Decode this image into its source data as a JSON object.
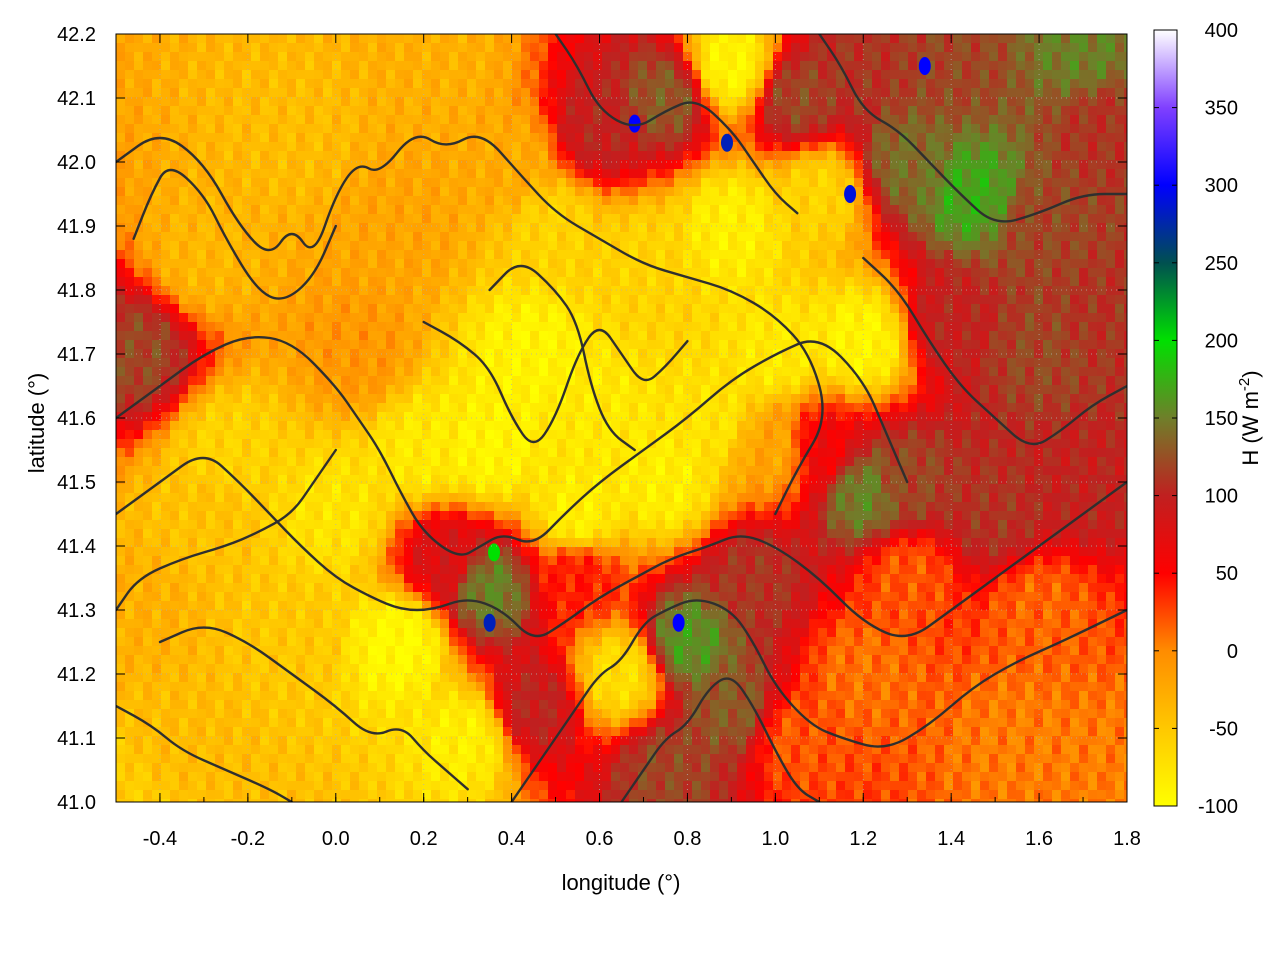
{
  "chart_data": {
    "type": "heatmap",
    "title": "",
    "xlabel": "longitude (°)",
    "ylabel": "latitude (°)",
    "xlim": [
      -0.5,
      1.8
    ],
    "ylim": [
      41.0,
      42.2
    ],
    "x_ticks": [
      -0.4,
      -0.2,
      0.0,
      0.2,
      0.4,
      0.6,
      0.8,
      1.0,
      1.2,
      1.4,
      1.6,
      1.8
    ],
    "x_tick_labels": [
      "-0.4",
      "-0.2",
      "0.0",
      "0.2",
      "0.4",
      "0.6",
      "0.8",
      "1.0",
      "1.2",
      "1.4",
      "1.6",
      "1.8"
    ],
    "y_ticks": [
      41.0,
      41.1,
      41.2,
      41.3,
      41.4,
      41.5,
      41.6,
      41.7,
      41.8,
      41.9,
      42.0,
      42.1,
      42.2
    ],
    "y_tick_labels": [
      "41.0",
      "41.1",
      "41.2",
      "41.3",
      "41.4",
      "41.5",
      "41.6",
      "41.7",
      "41.8",
      "41.9",
      "42.0",
      "42.1",
      "42.2"
    ],
    "grid": true,
    "colorbar": {
      "label": "H (W m",
      "label_superscript": "-2",
      "label_close": ")",
      "range": [
        -100,
        400
      ],
      "ticks": [
        -100,
        -50,
        0,
        50,
        100,
        150,
        200,
        250,
        300,
        350,
        400
      ],
      "tick_labels": [
        "-100",
        "-50",
        "0",
        "50",
        "100",
        "150",
        "200",
        "250",
        "300",
        "350",
        "400"
      ],
      "stops": [
        {
          "value": -100,
          "color": "#ffff00"
        },
        {
          "value": -50,
          "color": "#ffc800"
        },
        {
          "value": 0,
          "color": "#ff8c00"
        },
        {
          "value": 50,
          "color": "#ff0000"
        },
        {
          "value": 100,
          "color": "#c02020"
        },
        {
          "value": 150,
          "color": "#6f7f2a"
        },
        {
          "value": 200,
          "color": "#00e000"
        },
        {
          "value": 250,
          "color": "#005050"
        },
        {
          "value": 300,
          "color": "#0000ff"
        },
        {
          "value": 350,
          "color": "#8040ff"
        },
        {
          "value": 400,
          "color": "#ffffff"
        }
      ]
    },
    "field_regions": [
      {
        "lon": -0.5,
        "lat": 41.0,
        "value": -55
      },
      {
        "lon": -0.35,
        "lat": 41.1,
        "value": -40
      },
      {
        "lon": -0.45,
        "lat": 41.3,
        "value": -30
      },
      {
        "lon": -0.3,
        "lat": 41.45,
        "value": -45
      },
      {
        "lon": -0.45,
        "lat": 41.7,
        "value": 120
      },
      {
        "lon": -0.3,
        "lat": 41.85,
        "value": -35
      },
      {
        "lon": -0.1,
        "lat": 42.05,
        "value": -40
      },
      {
        "lon": 0.05,
        "lat": 41.7,
        "value": -10
      },
      {
        "lon": 0.15,
        "lat": 41.9,
        "value": -20
      },
      {
        "lon": 0.25,
        "lat": 42.15,
        "value": -30
      },
      {
        "lon": 0.4,
        "lat": 42.0,
        "value": -25
      },
      {
        "lon": 0.0,
        "lat": 41.45,
        "value": -75
      },
      {
        "lon": 0.2,
        "lat": 41.55,
        "value": -80
      },
      {
        "lon": 0.15,
        "lat": 41.25,
        "value": -95
      },
      {
        "lon": 0.3,
        "lat": 41.1,
        "value": -85
      },
      {
        "lon": 0.45,
        "lat": 41.7,
        "value": -90
      },
      {
        "lon": 0.6,
        "lat": 41.6,
        "value": -80
      },
      {
        "lon": 0.7,
        "lat": 41.85,
        "value": -60
      },
      {
        "lon": 0.55,
        "lat": 41.45,
        "value": -85
      },
      {
        "lon": 0.25,
        "lat": 41.38,
        "value": 80
      },
      {
        "lon": 0.35,
        "lat": 41.33,
        "value": 150
      },
      {
        "lon": 0.45,
        "lat": 41.15,
        "value": 100
      },
      {
        "lon": 0.55,
        "lat": 41.35,
        "value": 40
      },
      {
        "lon": 0.65,
        "lat": 41.2,
        "value": -70
      },
      {
        "lon": 0.8,
        "lat": 41.25,
        "value": 160
      },
      {
        "lon": 0.9,
        "lat": 41.15,
        "value": 130
      },
      {
        "lon": 0.75,
        "lat": 41.05,
        "value": 120
      },
      {
        "lon": 0.95,
        "lat": 41.35,
        "value": 110
      },
      {
        "lon": 1.05,
        "lat": 41.1,
        "value": 20
      },
      {
        "lon": 1.2,
        "lat": 41.2,
        "value": 10
      },
      {
        "lon": 1.3,
        "lat": 41.35,
        "value": 20
      },
      {
        "lon": 1.55,
        "lat": 41.1,
        "value": 5
      },
      {
        "lon": 1.75,
        "lat": 41.05,
        "value": 5
      },
      {
        "lon": 1.6,
        "lat": 41.3,
        "value": 15
      },
      {
        "lon": 1.1,
        "lat": 41.55,
        "value": 60
      },
      {
        "lon": 1.2,
        "lat": 41.48,
        "value": 150
      },
      {
        "lon": 1.3,
        "lat": 41.5,
        "value": 120
      },
      {
        "lon": 1.5,
        "lat": 41.45,
        "value": 110
      },
      {
        "lon": 1.7,
        "lat": 41.5,
        "value": 100
      },
      {
        "lon": 1.0,
        "lat": 41.7,
        "value": -80
      },
      {
        "lon": 1.2,
        "lat": 41.72,
        "value": -90
      },
      {
        "lon": 1.4,
        "lat": 41.75,
        "value": 100
      },
      {
        "lon": 1.6,
        "lat": 41.7,
        "value": 120
      },
      {
        "lon": 1.75,
        "lat": 41.75,
        "value": 110
      },
      {
        "lon": 0.9,
        "lat": 41.9,
        "value": -85
      },
      {
        "lon": 1.1,
        "lat": 41.95,
        "value": -60
      },
      {
        "lon": 1.3,
        "lat": 42.0,
        "value": 140
      },
      {
        "lon": 1.45,
        "lat": 41.95,
        "value": 170
      },
      {
        "lon": 1.6,
        "lat": 41.9,
        "value": 120
      },
      {
        "lon": 1.75,
        "lat": 42.05,
        "value": 110
      },
      {
        "lon": 0.6,
        "lat": 42.05,
        "value": 100
      },
      {
        "lon": 0.75,
        "lat": 42.1,
        "value": 130
      },
      {
        "lon": 0.9,
        "lat": 42.15,
        "value": -90
      },
      {
        "lon": 1.05,
        "lat": 42.1,
        "value": 120
      },
      {
        "lon": 1.2,
        "lat": 42.15,
        "value": 110
      },
      {
        "lon": 1.4,
        "lat": 42.15,
        "value": 120
      },
      {
        "lon": 1.7,
        "lat": 42.18,
        "value": 150
      },
      {
        "lon": 0.5,
        "lat": 41.9,
        "value": -60
      },
      {
        "lon": -0.1,
        "lat": 41.25,
        "value": -50
      },
      {
        "lon": -0.25,
        "lat": 41.55,
        "value": -60
      },
      {
        "lon": 0.35,
        "lat": 41.55,
        "value": -90
      },
      {
        "lon": 0.75,
        "lat": 41.5,
        "value": -85
      },
      {
        "lon": 0.85,
        "lat": 41.6,
        "value": -75
      },
      {
        "lon": 1.0,
        "lat": 41.55,
        "value": -20
      }
    ],
    "hotspots": [
      {
        "lon": 0.35,
        "lat": 41.28,
        "value": 280
      },
      {
        "lon": 0.78,
        "lat": 41.28,
        "value": 300
      },
      {
        "lon": 0.68,
        "lat": 42.06,
        "value": 300
      },
      {
        "lon": 0.89,
        "lat": 42.03,
        "value": 280
      },
      {
        "lon": 1.17,
        "lat": 41.95,
        "value": 290
      },
      {
        "lon": 1.34,
        "lat": 42.15,
        "value": 300
      },
      {
        "lon": 0.36,
        "lat": 41.39,
        "value": 200
      }
    ],
    "contours": [
      [
        [
          -0.5,
          42.0
        ],
        [
          -0.4,
          42.05
        ],
        [
          -0.3,
          42.0
        ],
        [
          -0.22,
          41.9
        ],
        [
          -0.15,
          41.85
        ],
        [
          -0.1,
          41.9
        ],
        [
          -0.05,
          41.85
        ],
        [
          0.0,
          41.95
        ],
        [
          0.05,
          42.0
        ],
        [
          0.1,
          41.98
        ],
        [
          0.18,
          42.05
        ],
        [
          0.25,
          42.02
        ],
        [
          0.33,
          42.05
        ],
        [
          0.42,
          41.98
        ],
        [
          0.5,
          41.92
        ],
        [
          0.6,
          41.88
        ],
        [
          0.7,
          41.84
        ],
        [
          0.8,
          41.82
        ],
        [
          0.9,
          41.8
        ],
        [
          1.0,
          41.76
        ],
        [
          1.08,
          41.7
        ],
        [
          1.12,
          41.6
        ],
        [
          1.05,
          41.52
        ],
        [
          1.0,
          41.45
        ]
      ],
      [
        [
          -0.5,
          41.6
        ],
        [
          -0.4,
          41.65
        ],
        [
          -0.3,
          41.7
        ],
        [
          -0.2,
          41.73
        ],
        [
          -0.1,
          41.72
        ],
        [
          0.0,
          41.65
        ],
        [
          0.05,
          41.6
        ],
        [
          0.1,
          41.55
        ],
        [
          0.15,
          41.48
        ],
        [
          0.2,
          41.42
        ],
        [
          0.28,
          41.38
        ],
        [
          0.33,
          41.4
        ],
        [
          0.38,
          41.42
        ],
        [
          0.45,
          41.4
        ],
        [
          0.52,
          41.45
        ],
        [
          0.6,
          41.5
        ],
        [
          0.7,
          41.55
        ],
        [
          0.8,
          41.6
        ],
        [
          0.9,
          41.66
        ],
        [
          1.0,
          41.7
        ],
        [
          1.1,
          41.73
        ],
        [
          1.2,
          41.66
        ],
        [
          1.25,
          41.58
        ],
        [
          1.3,
          41.5
        ]
      ],
      [
        [
          -0.5,
          41.45
        ],
        [
          -0.4,
          41.5
        ],
        [
          -0.3,
          41.55
        ],
        [
          -0.22,
          41.5
        ],
        [
          -0.15,
          41.45
        ],
        [
          -0.08,
          41.4
        ],
        [
          0.0,
          41.35
        ],
        [
          0.08,
          41.32
        ],
        [
          0.15,
          41.3
        ],
        [
          0.22,
          41.3
        ],
        [
          0.3,
          41.32
        ],
        [
          0.38,
          41.3
        ],
        [
          0.45,
          41.25
        ],
        [
          0.52,
          41.28
        ],
        [
          0.6,
          41.32
        ],
        [
          0.68,
          41.35
        ],
        [
          0.76,
          41.38
        ],
        [
          0.85,
          41.4
        ],
        [
          0.92,
          41.42
        ],
        [
          1.0,
          41.4
        ],
        [
          1.1,
          41.35
        ],
        [
          1.2,
          41.28
        ],
        [
          1.3,
          41.25
        ],
        [
          1.4,
          41.3
        ],
        [
          1.5,
          41.35
        ],
        [
          1.6,
          41.4
        ],
        [
          1.7,
          41.45
        ],
        [
          1.8,
          41.5
        ]
      ],
      [
        [
          -0.4,
          41.25
        ],
        [
          -0.3,
          41.28
        ],
        [
          -0.2,
          41.25
        ],
        [
          -0.1,
          41.2
        ],
        [
          0.0,
          41.15
        ],
        [
          0.08,
          41.1
        ],
        [
          0.15,
          41.12
        ],
        [
          0.2,
          41.08
        ],
        [
          0.25,
          41.05
        ],
        [
          0.3,
          41.02
        ]
      ],
      [
        [
          -0.5,
          41.15
        ],
        [
          -0.42,
          41.12
        ],
        [
          -0.35,
          41.08
        ],
        [
          -0.25,
          41.05
        ],
        [
          -0.15,
          41.02
        ],
        [
          -0.1,
          41.0
        ]
      ],
      [
        [
          0.4,
          41.0
        ],
        [
          0.45,
          41.05
        ],
        [
          0.5,
          41.1
        ],
        [
          0.55,
          41.15
        ],
        [
          0.6,
          41.2
        ],
        [
          0.65,
          41.22
        ],
        [
          0.7,
          41.28
        ],
        [
          0.75,
          41.3
        ],
        [
          0.82,
          41.32
        ],
        [
          0.9,
          41.3
        ],
        [
          0.95,
          41.25
        ],
        [
          1.0,
          41.18
        ],
        [
          1.08,
          41.12
        ],
        [
          1.15,
          41.1
        ],
        [
          1.25,
          41.08
        ],
        [
          1.35,
          41.12
        ],
        [
          1.45,
          41.18
        ],
        [
          1.55,
          41.22
        ],
        [
          1.65,
          41.25
        ],
        [
          1.8,
          41.3
        ]
      ],
      [
        [
          0.65,
          41.0
        ],
        [
          0.7,
          41.05
        ],
        [
          0.75,
          41.1
        ],
        [
          0.8,
          41.12
        ],
        [
          0.85,
          41.18
        ],
        [
          0.9,
          41.2
        ],
        [
          0.95,
          41.15
        ],
        [
          1.0,
          41.08
        ],
        [
          1.05,
          41.02
        ],
        [
          1.1,
          41.0
        ]
      ],
      [
        [
          0.2,
          41.75
        ],
        [
          0.28,
          41.72
        ],
        [
          0.35,
          41.68
        ],
        [
          0.4,
          41.6
        ],
        [
          0.45,
          41.55
        ],
        [
          0.5,
          41.6
        ],
        [
          0.55,
          41.7
        ],
        [
          0.6,
          41.75
        ],
        [
          0.65,
          41.7
        ],
        [
          0.7,
          41.65
        ],
        [
          0.75,
          41.68
        ],
        [
          0.8,
          41.72
        ]
      ],
      [
        [
          0.35,
          41.8
        ],
        [
          0.42,
          41.85
        ],
        [
          0.5,
          41.8
        ],
        [
          0.55,
          41.75
        ],
        [
          0.58,
          41.65
        ],
        [
          0.62,
          41.58
        ],
        [
          0.68,
          41.55
        ]
      ],
      [
        [
          0.0,
          41.9
        ],
        [
          -0.05,
          41.82
        ],
        [
          -0.12,
          41.78
        ],
        [
          -0.18,
          41.8
        ],
        [
          -0.25,
          41.88
        ],
        [
          -0.3,
          41.95
        ],
        [
          -0.38,
          42.0
        ],
        [
          -0.42,
          41.95
        ],
        [
          -0.46,
          41.88
        ]
      ],
      [
        [
          1.1,
          42.2
        ],
        [
          1.15,
          42.15
        ],
        [
          1.2,
          42.08
        ],
        [
          1.28,
          42.05
        ],
        [
          1.35,
          42.0
        ],
        [
          1.42,
          41.95
        ],
        [
          1.5,
          41.9
        ],
        [
          1.6,
          41.92
        ],
        [
          1.7,
          41.95
        ],
        [
          1.8,
          41.95
        ]
      ],
      [
        [
          0.5,
          42.2
        ],
        [
          0.55,
          42.15
        ],
        [
          0.6,
          42.08
        ],
        [
          0.68,
          42.05
        ],
        [
          0.75,
          42.08
        ],
        [
          0.82,
          42.1
        ],
        [
          0.9,
          42.05
        ],
        [
          0.95,
          42.0
        ],
        [
          1.0,
          41.95
        ],
        [
          1.05,
          41.92
        ]
      ],
      [
        [
          1.2,
          41.85
        ],
        [
          1.28,
          41.8
        ],
        [
          1.35,
          41.72
        ],
        [
          1.42,
          41.65
        ],
        [
          1.5,
          41.6
        ],
        [
          1.58,
          41.55
        ],
        [
          1.65,
          41.58
        ],
        [
          1.72,
          41.62
        ],
        [
          1.8,
          41.65
        ]
      ],
      [
        [
          -0.5,
          41.3
        ],
        [
          -0.45,
          41.35
        ],
        [
          -0.35,
          41.38
        ],
        [
          -0.25,
          41.4
        ],
        [
          -0.18,
          41.42
        ],
        [
          -0.1,
          41.45
        ],
        [
          -0.05,
          41.5
        ],
        [
          0.0,
          41.55
        ]
      ]
    ]
  }
}
